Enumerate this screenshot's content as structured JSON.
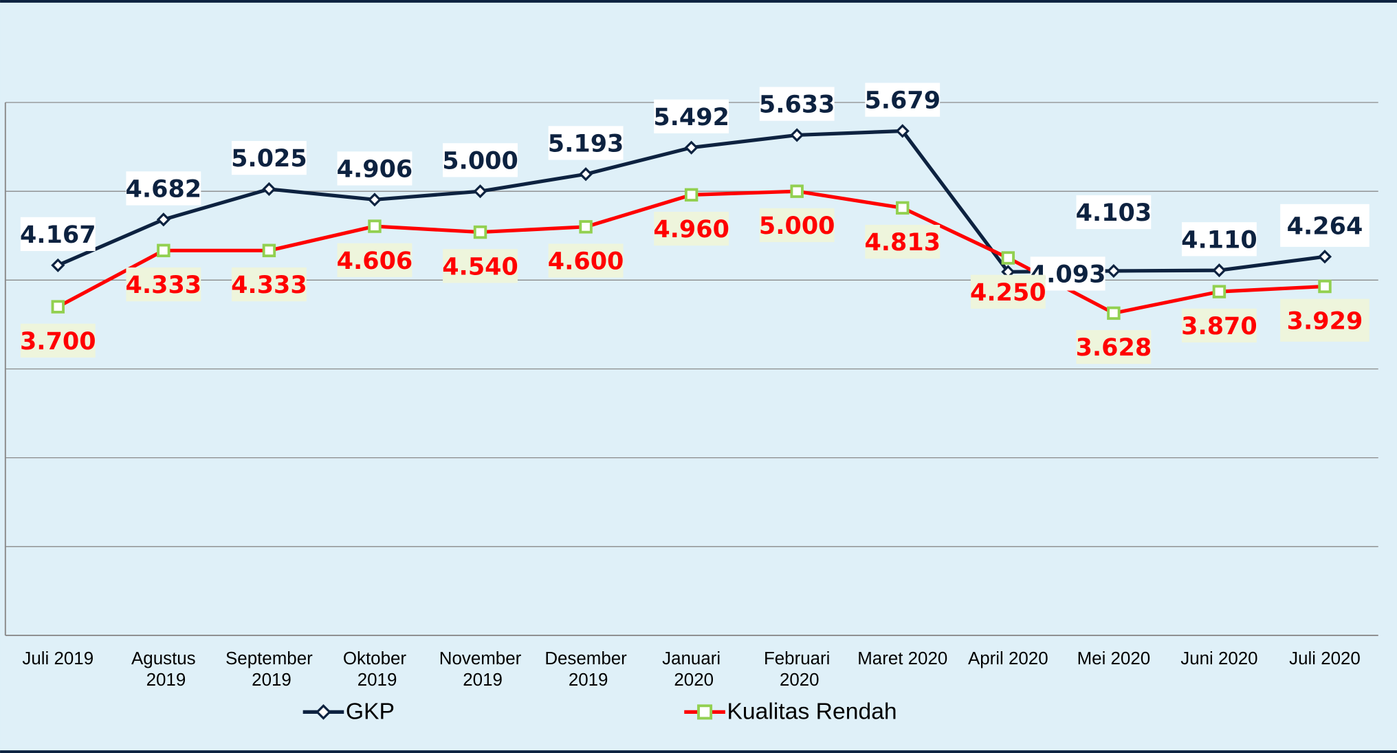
{
  "chart_data": {
    "type": "line",
    "categories": [
      "Juli 2019",
      "Agustus 2019",
      "September 2019",
      "Oktober 2019",
      "November 2019",
      "Desember 2019",
      "Januari 2020",
      "Februari 2020",
      "Maret 2020",
      "April 2020",
      "Mei 2020",
      "Juni 2020",
      "Juli 2020"
    ],
    "series": [
      {
        "name": "GKP",
        "color": "#0d2240",
        "values": [
          4167,
          4682,
          5025,
          4906,
          5000,
          5193,
          5492,
          5633,
          5679,
          4093,
          4103,
          4110,
          4264
        ],
        "value_labels": [
          "4.167",
          "4.682",
          "5.025",
          "4.906",
          "5.000",
          "5.193",
          "5.492",
          "5.633",
          "5.679",
          "4.093",
          "4.103",
          "4.110",
          "4.264"
        ]
      },
      {
        "name": "Kualitas Rendah",
        "color": "#ff0000",
        "values": [
          3700,
          4333,
          4333,
          4606,
          4540,
          4600,
          4960,
          5000,
          4813,
          4250,
          3628,
          3870,
          3929
        ],
        "value_labels": [
          "3.700",
          "4.333",
          "4.333",
          "4.606",
          "4.540",
          "4.600",
          "4.960",
          "5.000",
          "4.813",
          "4.250",
          "3.628",
          "3.870",
          "3.929"
        ]
      }
    ],
    "ylim": [
      0,
      6000
    ],
    "yticks": [
      1000,
      2000,
      3000,
      4000,
      5000,
      6000
    ],
    "grid": true,
    "legend": "bottom"
  }
}
